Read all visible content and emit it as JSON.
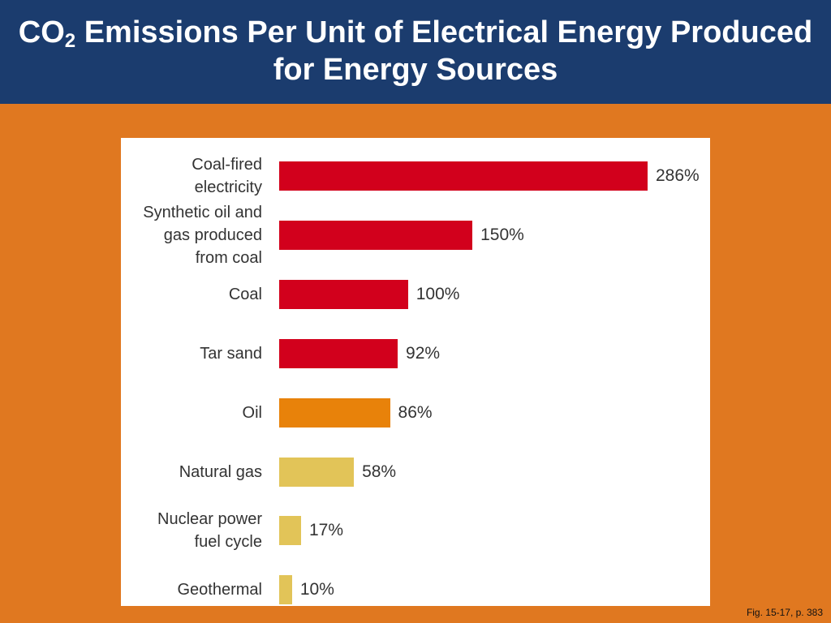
{
  "chart_data": {
    "type": "bar",
    "title_prefix": "CO",
    "title_subscript": "2",
    "title": "Emissions Per Unit of Electrical Energy Produced for Energy Sources",
    "categories": [
      "Coal-fired electricity",
      "Synthetic oil and gas produced from coal",
      "Coal",
      "Tar sand",
      "Oil",
      "Natural gas",
      "Nuclear power fuel cycle",
      "Geothermal"
    ],
    "values": [
      286,
      150,
      100,
      92,
      86,
      58,
      17,
      10
    ],
    "value_labels": [
      "286%",
      "150%",
      "100%",
      "92%",
      "86%",
      "58%",
      "17%",
      "10%"
    ],
    "colors": [
      "#d2001c",
      "#d2001c",
      "#d2001c",
      "#d2001c",
      "#e8820a",
      "#e2c458",
      "#e2c458",
      "#e2c458"
    ],
    "footnote": "Fig. 15-17, p. 383"
  }
}
